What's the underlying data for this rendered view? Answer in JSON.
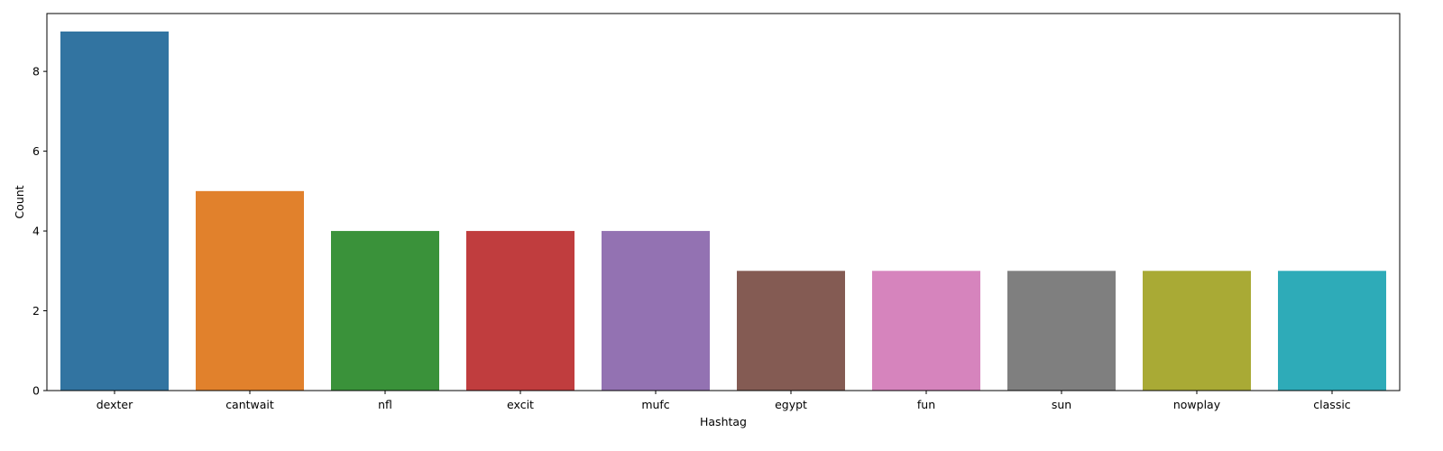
{
  "chart_data": {
    "type": "bar",
    "title": "",
    "xlabel": "Hashtag",
    "ylabel": "Count",
    "categories": [
      "dexter",
      "cantwait",
      "nfl",
      "excit",
      "mufc",
      "egypt",
      "fun",
      "sun",
      "nowplay",
      "classic"
    ],
    "values": [
      9,
      5,
      4,
      4,
      4,
      3,
      3,
      3,
      3,
      3
    ],
    "colors": [
      "#3274a1",
      "#e1812c",
      "#3a923a",
      "#c03d3e",
      "#9372b2",
      "#845b53",
      "#d684bd",
      "#7f7f7f",
      "#a9aa35",
      "#2eabb8"
    ],
    "ylim": [
      0,
      9.45
    ],
    "yticks": [
      0,
      2,
      4,
      6,
      8
    ],
    "grid": false,
    "legend": "none"
  }
}
